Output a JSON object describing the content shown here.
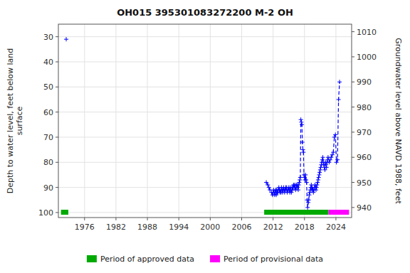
{
  "chart_data": {
    "type": "line",
    "title": "OH015 395301083272200 M-2 OH",
    "y_label": "Depth to water level, feet below land\nsurface",
    "y2_label": "Groundwater level above NAVD 1988, feet",
    "xlim": [
      1971,
      2027
    ],
    "xticks": [
      1976,
      1982,
      1988,
      1994,
      2000,
      2006,
      2012,
      2018,
      2024
    ],
    "ylim": [
      102,
      25
    ],
    "yticks": [
      30,
      40,
      50,
      60,
      70,
      80,
      90,
      100
    ],
    "y2lim": [
      936,
      1013
    ],
    "y2ticks": [
      940,
      950,
      960,
      970,
      980,
      990,
      1000,
      1010
    ],
    "grid": true,
    "legend": "bottom",
    "series": [
      {
        "color": "#0000ff",
        "marker": "plus",
        "line_style": "none",
        "x": [
          1972.5
        ],
        "values": [
          31.0
        ]
      },
      {
        "color": "#0000ff",
        "marker": "plus",
        "line_style": "dashed",
        "x": [
          2010.7,
          2011.0,
          2011.2,
          2011.4,
          2011.7,
          2011.9,
          2012.0,
          2012.1,
          2012.2,
          2012.3,
          2012.4,
          2012.5,
          2012.6,
          2012.7,
          2012.8,
          2012.9,
          2013.0,
          2013.1,
          2013.2,
          2013.3,
          2013.4,
          2013.5,
          2013.6,
          2013.7,
          2013.8,
          2013.9,
          2014.0,
          2014.1,
          2014.2,
          2014.3,
          2014.4,
          2014.5,
          2014.6,
          2014.7,
          2014.8,
          2014.9,
          2015.0,
          2015.1,
          2015.2,
          2015.3,
          2015.4,
          2015.5,
          2015.6,
          2015.7,
          2015.8,
          2015.9,
          2016.0,
          2016.1,
          2016.2,
          2016.3,
          2016.4,
          2016.5,
          2016.6,
          2016.7,
          2016.8,
          2016.9,
          2017.0,
          2017.1,
          2017.2,
          2017.3,
          2017.4,
          2017.5,
          2017.6,
          2017.7,
          2017.8,
          2017.9,
          2018.0,
          2018.1,
          2018.2,
          2018.3,
          2018.4,
          2018.5,
          2018.6,
          2018.7,
          2018.8,
          2018.9,
          2019.0,
          2019.1,
          2019.2,
          2019.3,
          2019.4,
          2019.5,
          2019.6,
          2019.7,
          2019.8,
          2019.9,
          2020.0,
          2020.1,
          2020.2,
          2020.3,
          2020.4,
          2020.5,
          2020.6,
          2020.7,
          2020.8,
          2020.9,
          2021.0,
          2021.1,
          2021.2,
          2021.3,
          2021.4,
          2021.5,
          2021.6,
          2021.7,
          2021.8,
          2021.9,
          2022.0,
          2022.1,
          2022.2,
          2022.3,
          2022.4,
          2022.5,
          2022.7,
          2022.9,
          2023.1,
          2023.3,
          2023.5,
          2023.7,
          2023.9,
          2024.1,
          2024.3,
          2024.5,
          2024.7
        ],
        "values": [
          88,
          89,
          90,
          91,
          92,
          93,
          92,
          91,
          92,
          93,
          92,
          91,
          93,
          91,
          92,
          92,
          91,
          90,
          91,
          92,
          91,
          92,
          90,
          91,
          92,
          91,
          90,
          91,
          92,
          91,
          90,
          91,
          90,
          92,
          91,
          91,
          90,
          91,
          92,
          90,
          91,
          92,
          90,
          91,
          90,
          89,
          90,
          89,
          90,
          91,
          89,
          90,
          89,
          90,
          91,
          89,
          88,
          87,
          86,
          63,
          64,
          65,
          72,
          75,
          76,
          85,
          86,
          87,
          85,
          87,
          88,
          95,
          98,
          96,
          95,
          93,
          92,
          91,
          90,
          89,
          91,
          90,
          91,
          92,
          91,
          90,
          89,
          90,
          91,
          90,
          89,
          88,
          87,
          86,
          85,
          84,
          83,
          82,
          81,
          80,
          79,
          78,
          80,
          81,
          82,
          83,
          80,
          81,
          82,
          80,
          79,
          78,
          80,
          79,
          78,
          77,
          76,
          70,
          69,
          80,
          79,
          55,
          48
        ]
      }
    ],
    "periods": [
      {
        "name": "Period of approved data",
        "color": "#00aa00",
        "start": [
          1971.5,
          2010.3
        ],
        "width": [
          1.4,
          12.3
        ]
      },
      {
        "name": "Period of provisional data",
        "color": "#ff00ff",
        "start": [
          2022.6
        ],
        "width": [
          3.9
        ]
      }
    ]
  }
}
